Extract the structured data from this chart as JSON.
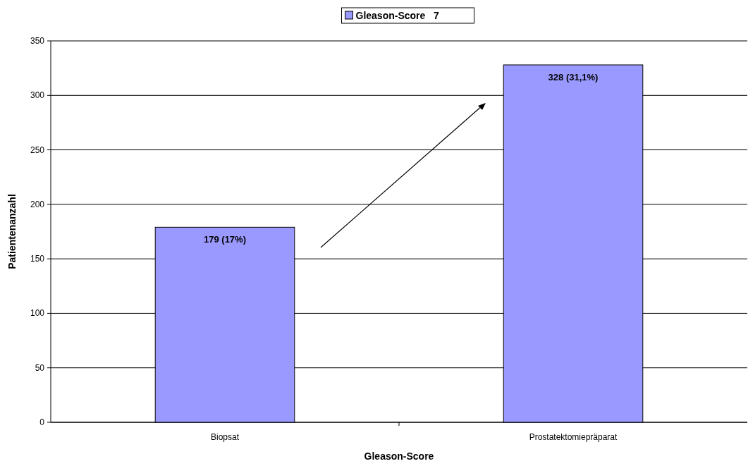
{
  "chart_data": {
    "type": "bar",
    "xlabel": "Gleason-Score",
    "ylabel": "Patientenanzahl",
    "categories": [
      "Biopsat",
      "Prostatektomiepräparat"
    ],
    "series": [
      {
        "name": "Gleason-Score   7",
        "color": "#9999ff",
        "values": [
          179,
          328
        ],
        "value_labels": [
          "179 (17%)",
          "328 (31,1%)"
        ]
      }
    ],
    "ylim": [
      0,
      350
    ],
    "yticks": [
      0,
      50,
      100,
      150,
      200,
      250,
      300,
      350
    ],
    "grid": "y",
    "legend": "top"
  }
}
